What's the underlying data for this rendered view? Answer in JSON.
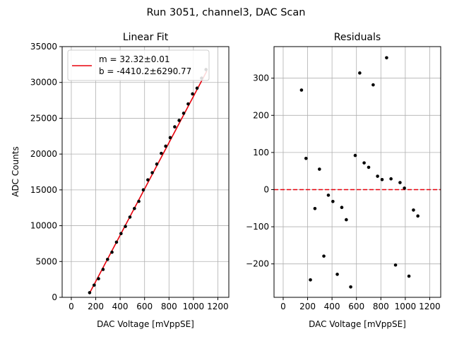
{
  "figure": {
    "suptitle": "Run 3051, channel3, DAC Scan"
  },
  "chart_data": [
    {
      "type": "scatter",
      "title": "Linear Fit",
      "xlabel": "DAC Voltage [mVppSE]",
      "ylabel": "ADC Counts",
      "xlim": [
        -75,
        1290
      ],
      "ylim": [
        0,
        35000
      ],
      "xticks": [
        0,
        200,
        400,
        600,
        800,
        1000,
        1200
      ],
      "yticks": [
        0,
        5000,
        10000,
        15000,
        20000,
        25000,
        30000,
        35000
      ],
      "grid": true,
      "legend": {
        "placement": "upper-left",
        "entries": [
          "m = 32.32±0.01",
          "b = -4410.2±6290.77"
        ]
      },
      "series": [
        {
          "kind": "points",
          "color": "#000000",
          "x": [
            150,
            187,
            223,
            260,
            297,
            333,
            370,
            407,
            443,
            480,
            517,
            553,
            590,
            627,
            663,
            700,
            737,
            773,
            810,
            847,
            883,
            920,
            957,
            993,
            1030,
            1067,
            1103
          ],
          "y": [
            650,
            1700,
            2600,
            3900,
            5300,
            6300,
            7700,
            8900,
            9900,
            11200,
            12400,
            13400,
            15000,
            16400,
            17400,
            18600,
            20100,
            21100,
            22300,
            23800,
            24700,
            25700,
            27000,
            28400,
            29200,
            30600,
            31800
          ]
        },
        {
          "kind": "line",
          "color": "#e8000b",
          "x": [
            150,
            1110
          ],
          "y": [
            600,
            31600
          ]
        }
      ]
    },
    {
      "type": "scatter",
      "title": "Residuals",
      "xlabel": "DAC Voltage [mVppSE]",
      "ylabel": "",
      "xlim": [
        -75,
        1290
      ],
      "ylim": [
        -290,
        385
      ],
      "xticks": [
        0,
        200,
        400,
        600,
        800,
        1000,
        1200
      ],
      "yticks": [
        -200,
        -100,
        0,
        100,
        200,
        300
      ],
      "grid": true,
      "series": [
        {
          "kind": "points",
          "color": "#000000",
          "x": [
            150,
            187,
            223,
            260,
            297,
            333,
            370,
            407,
            443,
            480,
            517,
            553,
            590,
            627,
            663,
            700,
            737,
            773,
            810,
            847,
            883,
            920,
            957,
            993,
            1030,
            1067,
            1103
          ],
          "y": [
            268,
            84,
            -243,
            -51,
            55,
            -179,
            -15,
            -32,
            -228,
            -48,
            -81,
            -262,
            92,
            314,
            72,
            60,
            282,
            36,
            27,
            355,
            29,
            -203,
            19,
            4,
            -233,
            -55,
            -71
          ]
        },
        {
          "kind": "hline",
          "color": "#e8000b",
          "dashed": true,
          "y": 0
        }
      ]
    }
  ]
}
